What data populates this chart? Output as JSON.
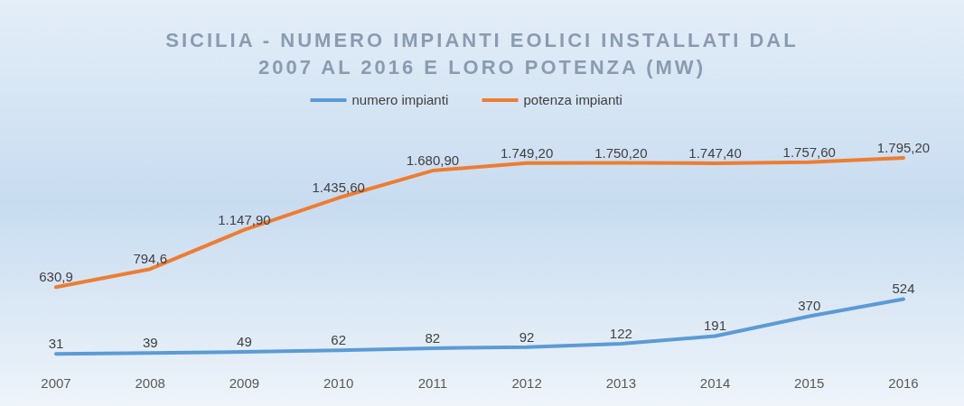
{
  "chart_data": {
    "type": "line",
    "title": "SICILIA - NUMERO IMPIANTI EOLICI INSTALLATI DAL\n2007 AL 2016 E LORO POTENZA (MW)",
    "categories": [
      "2007",
      "2008",
      "2009",
      "2010",
      "2011",
      "2012",
      "2013",
      "2014",
      "2015",
      "2016"
    ],
    "series": [
      {
        "name": "numero impianti",
        "color": "#5b9bd5",
        "values": [
          31,
          39,
          49,
          62,
          82,
          92,
          122,
          191,
          370,
          524
        ],
        "value_labels": [
          "31",
          "39",
          "49",
          "62",
          "82",
          "92",
          "122",
          "191",
          "370",
          "524"
        ]
      },
      {
        "name": "potenza impianti",
        "color": "#ed7d31",
        "values": [
          630.9,
          794.6,
          1147.9,
          1435.6,
          1680.9,
          1749.2,
          1750.2,
          1747.4,
          1757.6,
          1795.2
        ],
        "value_labels": [
          "630,9",
          "794,6",
          "1.147,90",
          "1.435,60",
          "1.680,90",
          "1.749,20",
          "1.750,20",
          "1.747,40",
          "1.757,60",
          "1.795,20"
        ]
      }
    ],
    "legend": "top",
    "grid": false,
    "marker": "none",
    "line_style": "solid"
  }
}
